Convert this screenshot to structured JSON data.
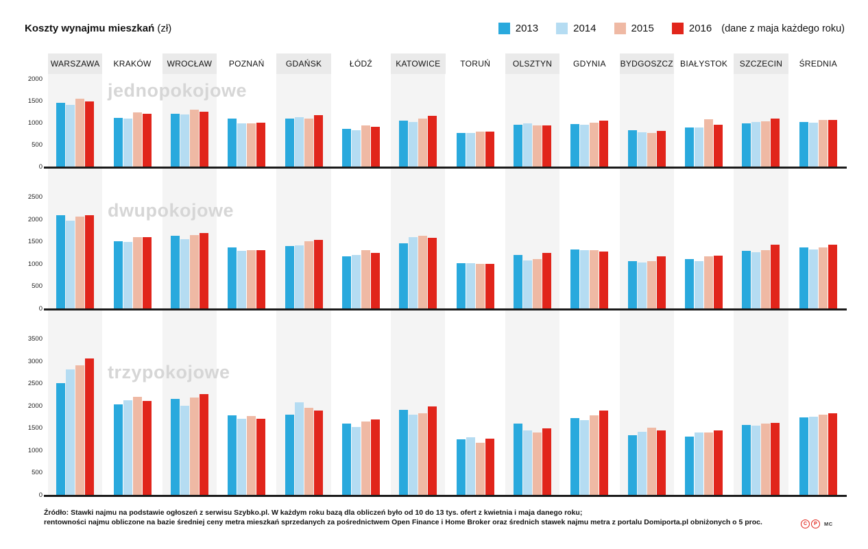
{
  "header": {
    "title_bold": "Koszty wynajmu mieszkań",
    "title_unit": "(zł)"
  },
  "legend": {
    "items": [
      {
        "label": "2013",
        "color": "#29a9dd"
      },
      {
        "label": "2014",
        "color": "#b5dcf2"
      },
      {
        "label": "2015",
        "color": "#efb9a4"
      },
      {
        "label": "2016",
        "color": "#e1251b"
      }
    ],
    "note": "(dane z maja każdego roku)"
  },
  "colors": {
    "accent_red": "#e1251b",
    "stripe_gray": "#f4f4f4",
    "header_gray": "#eaeaea",
    "watermark_gray": "#d6d6d6",
    "baseline_black": "#1a1a1a"
  },
  "chart_data": [
    {
      "type": "bar",
      "title": "jednopokojowe",
      "categories": [
        "WARSZAWA",
        "KRAKÓW",
        "WROCŁAW",
        "POZNAŃ",
        "GDAŃSK",
        "ŁÓDŹ",
        "KATOWICE",
        "TORUŃ",
        "OLSZTYN",
        "GDYNIA",
        "BYDGOSZCZ",
        "BIAŁYSTOK",
        "SZCZECIN",
        "ŚREDNIA"
      ],
      "series": [
        {
          "name": "2013",
          "values": [
            1450,
            1110,
            1200,
            1100,
            1100,
            860,
            1050,
            760,
            950,
            970,
            830,
            890,
            980,
            1020
          ]
        },
        {
          "name": "2014",
          "values": [
            1400,
            1090,
            1180,
            980,
            1120,
            830,
            1020,
            770,
            980,
            950,
            780,
            890,
            1010,
            1000
          ]
        },
        {
          "name": "2015",
          "values": [
            1550,
            1230,
            1290,
            990,
            1100,
            930,
            1100,
            800,
            940,
            1000,
            770,
            1080,
            1030,
            1060
          ]
        },
        {
          "name": "2016",
          "values": [
            1490,
            1200,
            1250,
            1000,
            1170,
            900,
            1150,
            790,
            940,
            1040,
            810,
            950,
            1090,
            1060
          ]
        }
      ],
      "ylim": [
        0,
        2000
      ],
      "yticks": [
        0,
        500,
        1000,
        1500,
        2000
      ],
      "grid": false,
      "legend_position": "top-right"
    },
    {
      "type": "bar",
      "title": "dwupokojowe",
      "categories": [
        "WARSZAWA",
        "KRAKÓW",
        "WROCŁAW",
        "POZNAŃ",
        "GDAŃSK",
        "ŁÓDŹ",
        "KATOWICE",
        "TORUŃ",
        "OLSZTYN",
        "GDYNIA",
        "BYDGOSZCZ",
        "BIAŁYSTOK",
        "SZCZECIN",
        "ŚREDNIA"
      ],
      "series": [
        {
          "name": "2013",
          "values": [
            2090,
            1500,
            1620,
            1360,
            1400,
            1170,
            1460,
            1010,
            1190,
            1320,
            1060,
            1100,
            1290,
            1360
          ]
        },
        {
          "name": "2014",
          "values": [
            1960,
            1490,
            1550,
            1290,
            1410,
            1200,
            1600,
            1010,
            1080,
            1300,
            1030,
            1060,
            1260,
            1320
          ]
        },
        {
          "name": "2015",
          "values": [
            2050,
            1590,
            1640,
            1300,
            1500,
            1300,
            1630,
            1000,
            1100,
            1300,
            1060,
            1160,
            1310,
            1360
          ]
        },
        {
          "name": "2016",
          "values": [
            2090,
            1600,
            1690,
            1300,
            1530,
            1250,
            1580,
            1000,
            1240,
            1280,
            1160,
            1180,
            1420,
            1420
          ]
        }
      ],
      "ylim": [
        0,
        2500
      ],
      "yticks": [
        0,
        500,
        1000,
        1500,
        2000,
        2500
      ],
      "grid": false,
      "legend_position": "top-right"
    },
    {
      "type": "bar",
      "title": "trzypokojowe",
      "categories": [
        "WARSZAWA",
        "KRAKÓW",
        "WROCŁAW",
        "POZNAŃ",
        "GDAŃSK",
        "ŁÓDŹ",
        "KATOWICE",
        "TORUŃ",
        "OLSZTYN",
        "GDYNIA",
        "BYDGOSZCZ",
        "BIAŁYSTOK",
        "SZCZECIN",
        "ŚREDNIA"
      ],
      "series": [
        {
          "name": "2013",
          "values": [
            2500,
            2030,
            2150,
            1780,
            1800,
            1600,
            1900,
            1250,
            1600,
            1720,
            1340,
            1310,
            1570,
            1740
          ]
        },
        {
          "name": "2014",
          "values": [
            2810,
            2120,
            2000,
            1700,
            2080,
            1520,
            1800,
            1290,
            1440,
            1670,
            1420,
            1390,
            1550,
            1750
          ]
        },
        {
          "name": "2015",
          "values": [
            2900,
            2200,
            2180,
            1760,
            1950,
            1650,
            1830,
            1170,
            1400,
            1780,
            1500,
            1400,
            1600,
            1790
          ]
        },
        {
          "name": "2016",
          "values": [
            3050,
            2110,
            2250,
            1700,
            1890,
            1690,
            1980,
            1260,
            1490,
            1890,
            1440,
            1450,
            1610,
            1830
          ]
        }
      ],
      "ylim": [
        0,
        3500
      ],
      "yticks": [
        0,
        500,
        1000,
        1500,
        2000,
        2500,
        3000,
        3500
      ],
      "grid": false,
      "legend_position": "top-right"
    }
  ],
  "footer": {
    "line1": "Źródło: Stawki najmu na podstawie ogłoszeń z serwisu Szybko.pl. W każdym roku bazą dla obliczeń było od  10 do 13 tys. ofert z kwietnia i maja danego roku;",
    "line2": "rentowności najmu obliczone na bazie średniej ceny metra mieszkań sprzedanych za pośrednictwem Open Finance i Home Broker oraz średnich stawek najmu metra z portalu Domiporta.pl obniżonych o 5 proc.",
    "badge1": "C",
    "badge2": "P",
    "mc": "MC"
  }
}
